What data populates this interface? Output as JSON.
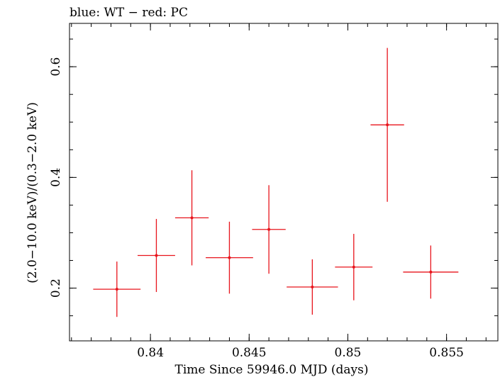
{
  "chart_data": {
    "type": "scatter",
    "title": "blue: WT − red: PC",
    "xlabel": "Time Since 59946.0 MJD (days)",
    "ylabel": "(2.0−10.0 keV)/(0.3−2.0 keV)",
    "xlim": [
      0.8359,
      0.8576
    ],
    "ylim": [
      0.1047,
      0.6783
    ],
    "x_ticks": [
      {
        "value": 0.84,
        "label": "0.84"
      },
      {
        "value": 0.845,
        "label": "0.845"
      },
      {
        "value": 0.85,
        "label": "0.85"
      },
      {
        "value": 0.855,
        "label": "0.855"
      }
    ],
    "y_ticks": [
      {
        "value": 0.2,
        "label": "0.2"
      },
      {
        "value": 0.4,
        "label": "0.4"
      },
      {
        "value": 0.6,
        "label": "0.6"
      }
    ],
    "grid": false,
    "series": [
      {
        "color": "#e8141c",
        "points": [
          {
            "x": 0.8383,
            "y": 0.198,
            "xerr": 0.0012,
            "yerr_low": 0.05,
            "yerr_high": 0.05
          },
          {
            "x": 0.8403,
            "y": 0.259,
            "xerr": 0.00095,
            "yerr_low": 0.066,
            "yerr_high": 0.066
          },
          {
            "x": 0.8421,
            "y": 0.327,
            "xerr": 0.00085,
            "yerr_low": 0.086,
            "yerr_high": 0.086
          },
          {
            "x": 0.844,
            "y": 0.255,
            "xerr": 0.0012,
            "yerr_low": 0.065,
            "yerr_high": 0.065
          },
          {
            "x": 0.846,
            "y": 0.306,
            "xerr": 0.00085,
            "yerr_low": 0.08,
            "yerr_high": 0.08
          },
          {
            "x": 0.8482,
            "y": 0.202,
            "xerr": 0.0013,
            "yerr_low": 0.05,
            "yerr_high": 0.05
          },
          {
            "x": 0.8503,
            "y": 0.238,
            "xerr": 0.00095,
            "yerr_low": 0.06,
            "yerr_high": 0.06
          },
          {
            "x": 0.852,
            "y": 0.495,
            "xerr": 0.00085,
            "yerr_low": 0.139,
            "yerr_high": 0.139
          },
          {
            "x": 0.8542,
            "y": 0.229,
            "xerr": 0.0014,
            "yerr_low": 0.048,
            "yerr_high": 0.048
          }
        ]
      }
    ]
  }
}
